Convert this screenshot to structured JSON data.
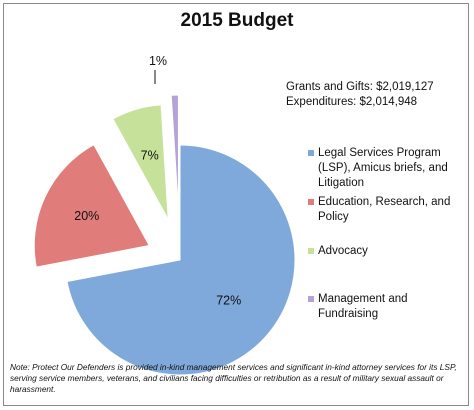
{
  "chart_data": {
    "type": "pie",
    "title": "2015 Budget",
    "slices": [
      {
        "name": "Legal Services Program (LSP), Amicus briefs, and Litigation",
        "value": 72,
        "label": "72%",
        "color": "#7fa8db"
      },
      {
        "name": "Education, Research, and Policy",
        "value": 20,
        "label": "20%",
        "color": "#e07c7a"
      },
      {
        "name": "Advocacy",
        "value": 7,
        "label": "7%",
        "color": "#c6e29a"
      },
      {
        "name": "Management and Fundraising",
        "value": 1,
        "label": "1%",
        "color": "#b4a3d6"
      }
    ],
    "legend_position": "right",
    "exploded": true
  },
  "totals": {
    "grants": "Grants and Gifts: $2,019,127",
    "expenditures": "Expenditures: $2,014,948"
  },
  "note": "Note: Protect Our Defenders is provided in-kind management services and significant in-kind attorney services for its LSP, serving service members, veterans, and civilians facing difficulties or retribution as a result of military sexual assault or harassment."
}
